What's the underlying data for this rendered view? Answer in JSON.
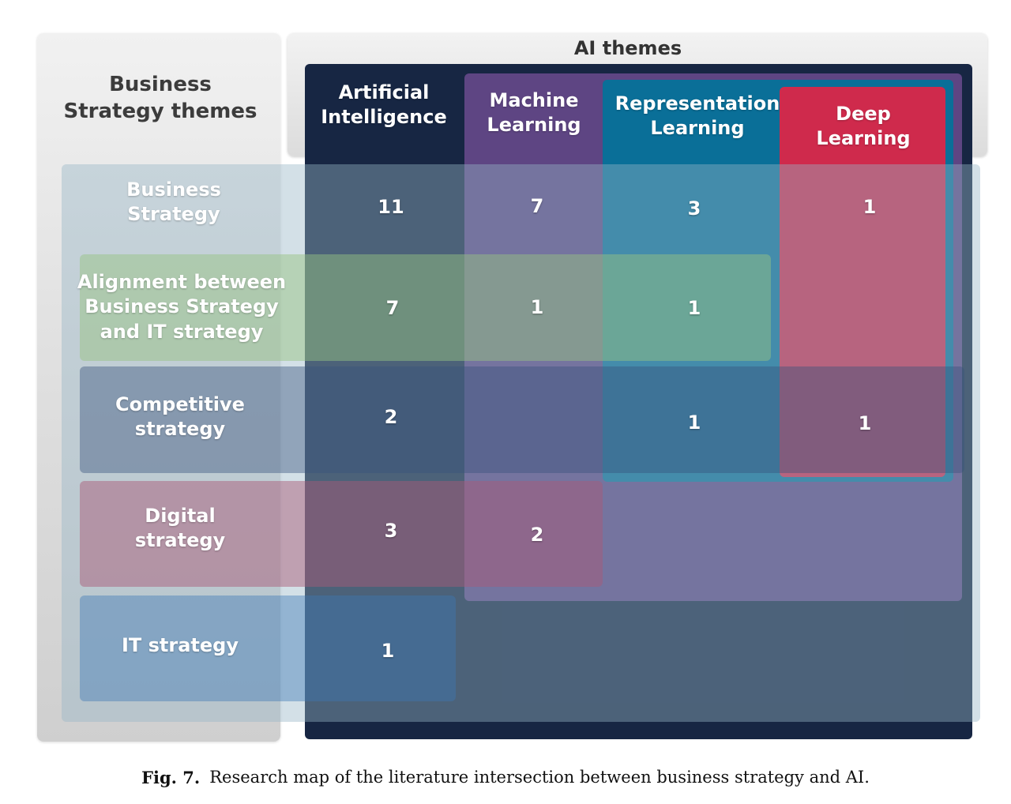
{
  "header": {
    "business_title": "Business\nStrategy themes",
    "ai_title": "AI themes"
  },
  "ai_themes": [
    {
      "key": "ai",
      "label": "Artificial\nIntelligence",
      "color": "#172643"
    },
    {
      "key": "ml",
      "label": "Machine\nLearning",
      "color": "#5e4583"
    },
    {
      "key": "rl",
      "label": "Representation\nLearning",
      "color": "#0a6f98"
    },
    {
      "key": "dl",
      "label": "Deep\nLearning",
      "color": "#cf2a4c"
    }
  ],
  "business_themes": [
    {
      "key": "bs",
      "label": "Business\nStrategy",
      "color": "#8aa7bb"
    },
    {
      "key": "align",
      "label": "Alignment between\nBusiness Strategy\nand IT strategy",
      "color": "#93b583"
    },
    {
      "key": "comp",
      "label": "Competitive\nstrategy",
      "color": "#5a6f95"
    },
    {
      "key": "digital",
      "label": "Digital\nstrategy",
      "color": "#a06a86"
    },
    {
      "key": "it",
      "label": "IT strategy",
      "color": "#5b86aa"
    }
  ],
  "counts": [
    {
      "row": "Business Strategy",
      "col": "Artificial Intelligence",
      "value": "11"
    },
    {
      "row": "Business Strategy",
      "col": "Machine Learning",
      "value": "7"
    },
    {
      "row": "Business Strategy",
      "col": "Representation Learning",
      "value": "3"
    },
    {
      "row": "Business Strategy",
      "col": "Deep Learning",
      "value": "1"
    },
    {
      "row": "Alignment between Business Strategy and IT strategy",
      "col": "Artificial Intelligence",
      "value": "7"
    },
    {
      "row": "Alignment between Business Strategy and IT strategy",
      "col": "Machine Learning",
      "value": "1"
    },
    {
      "row": "Alignment between Business Strategy and IT strategy",
      "col": "Representation Learning",
      "value": "1"
    },
    {
      "row": "Competitive strategy",
      "col": "Artificial Intelligence",
      "value": "2"
    },
    {
      "row": "Competitive strategy",
      "col": "Representation Learning",
      "value": "1"
    },
    {
      "row": "Competitive strategy",
      "col": "Deep Learning",
      "value": "1"
    },
    {
      "row": "Digital strategy",
      "col": "Artificial Intelligence",
      "value": "3"
    },
    {
      "row": "Digital strategy",
      "col": "Machine Learning",
      "value": "2"
    },
    {
      "row": "IT strategy",
      "col": "Artificial Intelligence",
      "value": "1"
    }
  ],
  "caption": {
    "label": "Fig. 7.",
    "text": "Research map of the literature intersection between business strategy and AI."
  }
}
